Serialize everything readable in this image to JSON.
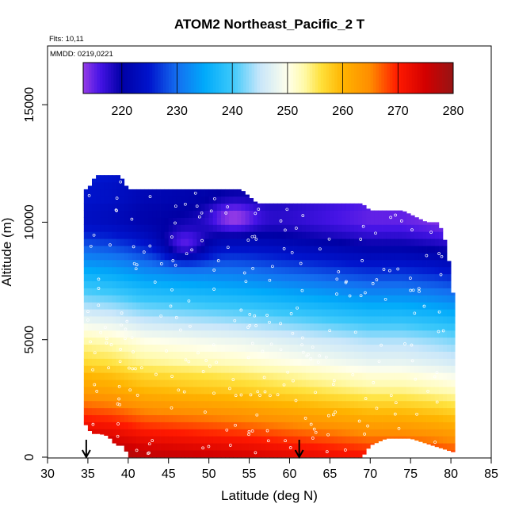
{
  "chart_data": {
    "type": "heatmap",
    "title": "ATOM2 Northeast_Pacific_2 T",
    "annotations": [
      "Flts: 10,11",
      "MMDD: 0219,0221"
    ],
    "xlabel": "Latitude (deg N)",
    "ylabel": "Altitude (m)",
    "xlim": [
      30,
      85
    ],
    "ylim": [
      0,
      17500
    ],
    "x_ticks": [
      30,
      35,
      40,
      45,
      50,
      55,
      60,
      65,
      70,
      75,
      80,
      85
    ],
    "y_ticks": [
      0,
      5000,
      10000,
      15000
    ],
    "colorbar": {
      "range": [
        213,
        280
      ],
      "ticks": [
        220,
        230,
        240,
        250,
        260,
        270,
        280
      ]
    },
    "grid": false,
    "column_tops": [
      [
        35,
        11400
      ],
      [
        36,
        12000
      ],
      [
        37,
        12000
      ],
      [
        38,
        12000
      ],
      [
        39,
        12000
      ],
      [
        40,
        11400
      ],
      [
        42,
        11400
      ],
      [
        46,
        11400
      ],
      [
        50,
        11400
      ],
      [
        54,
        11400
      ],
      [
        56,
        10800
      ],
      [
        60,
        10800
      ],
      [
        64,
        10800
      ],
      [
        69,
        10800
      ],
      [
        70,
        10500
      ],
      [
        74,
        10500
      ],
      [
        77,
        10000
      ],
      [
        78.5,
        10000
      ],
      [
        79.5,
        9000
      ],
      [
        80,
        7700
      ],
      [
        80.5,
        6300
      ]
    ],
    "column_bottoms": [
      [
        34.5,
        1500
      ],
      [
        35.5,
        1000
      ],
      [
        36.5,
        1000
      ],
      [
        37.5,
        900
      ],
      [
        38.5,
        500
      ],
      [
        39.5,
        500
      ],
      [
        40,
        0
      ],
      [
        45,
        0
      ],
      [
        55,
        0
      ],
      [
        60,
        0
      ],
      [
        61,
        0
      ],
      [
        65,
        0
      ],
      [
        69,
        0
      ],
      [
        70,
        500
      ],
      [
        72,
        800
      ],
      [
        75,
        800
      ],
      [
        80.5,
        200
      ]
    ],
    "temperature_profile": [
      [
        0,
        276
      ],
      [
        500,
        273
      ],
      [
        1000,
        270
      ],
      [
        1500,
        267
      ],
      [
        2000,
        264
      ],
      [
        2500,
        261
      ],
      [
        3000,
        258
      ],
      [
        3500,
        256
      ],
      [
        4000,
        253
      ],
      [
        4500,
        251
      ],
      [
        5000,
        249
      ],
      [
        5500,
        246
      ],
      [
        6000,
        243
      ],
      [
        6500,
        240
      ],
      [
        7000,
        237
      ],
      [
        7500,
        234
      ],
      [
        8000,
        231
      ],
      [
        8500,
        228
      ],
      [
        9000,
        225
      ],
      [
        9500,
        222
      ],
      [
        10000,
        220
      ],
      [
        10500,
        220
      ],
      [
        11000,
        221
      ],
      [
        11500,
        221
      ],
      [
        12000,
        222
      ]
    ],
    "latitude_offset": [
      [
        34,
        4
      ],
      [
        38,
        3
      ],
      [
        42,
        1
      ],
      [
        48,
        0
      ],
      [
        54,
        -1
      ],
      [
        58,
        -2
      ],
      [
        62,
        -3
      ],
      [
        66,
        -4
      ],
      [
        70,
        -5
      ],
      [
        74,
        -5
      ],
      [
        78,
        -6
      ],
      [
        81,
        -7
      ]
    ],
    "cold_spots": [
      {
        "lat": 53,
        "alt": 10200,
        "t": 213
      },
      {
        "lat": 47,
        "alt": 9000,
        "t": 216
      }
    ],
    "arrows_lat": [
      34.8,
      61.2
    ]
  }
}
